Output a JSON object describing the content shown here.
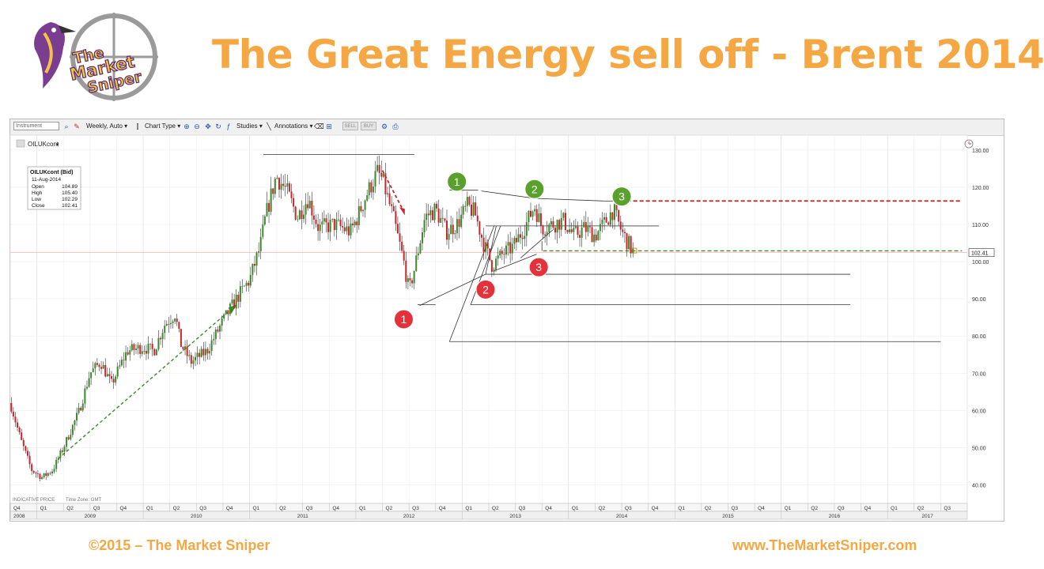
{
  "slide": {
    "title": "The Great Energy sell off - Brent 2014",
    "footer_left": "©2015 – The Market Sniper",
    "footer_right": "www.TheMarketSniper.com",
    "logo_text": [
      "The",
      "Market",
      "Sniper"
    ]
  },
  "toolbar": {
    "instrument_placeholder": "Instrument",
    "interval": "Weekly, Auto",
    "chart_type": "Chart Type",
    "studies": "Studies",
    "annotations": "Annotations",
    "sell": "SELL",
    "buy": "BUY"
  },
  "chart_data": {
    "type": "candlestick",
    "symbol": "OILUKcont",
    "tooltip": {
      "header": "OILUKcont (Bid)",
      "date": "11-Aug-2014",
      "rows": [
        {
          "label": "Open",
          "value": "104.89"
        },
        {
          "label": "High",
          "value": "105.40"
        },
        {
          "label": "Low",
          "value": "102.29"
        },
        {
          "label": "Close",
          "value": "102.41"
        }
      ]
    },
    "last_price": "102.41",
    "ylim": [
      35,
      134
    ],
    "y_ticks": [
      130,
      120,
      110,
      100,
      90,
      80,
      70,
      60,
      50,
      40
    ],
    "y_tick_labels": [
      "130.00",
      "120.00",
      "110.00",
      "100.00",
      "90.00",
      "80.00",
      "70.00",
      "60.00",
      "50.00",
      "40.00"
    ],
    "xlim": [
      2008.75,
      2017.75
    ],
    "quarters": [
      "Q4",
      "Q1",
      "Q2",
      "Q3",
      "Q4",
      "Q1",
      "Q2",
      "Q3",
      "Q4",
      "Q1",
      "Q2",
      "Q3",
      "Q4",
      "Q1",
      "Q2",
      "Q3",
      "Q4",
      "Q1",
      "Q2",
      "Q3",
      "Q4",
      "Q1",
      "Q2",
      "Q3",
      "Q4",
      "Q1",
      "Q2",
      "Q3",
      "Q4",
      "Q1",
      "Q2",
      "Q3",
      "Q4",
      "Q1",
      "Q2",
      "Q3"
    ],
    "years": [
      "2008",
      "2009",
      "2010",
      "2011",
      "2012",
      "2013",
      "2014",
      "2015",
      "2016",
      "2017"
    ],
    "footnote_left": "INDICATIVE PRICE",
    "footnote_right": "Time Zone: GMT",
    "price_path": [
      [
        2008.75,
        62
      ],
      [
        2008.85,
        52
      ],
      [
        2008.95,
        44
      ],
      [
        2009.05,
        42
      ],
      [
        2009.15,
        44
      ],
      [
        2009.25,
        50
      ],
      [
        2009.4,
        60
      ],
      [
        2009.5,
        70
      ],
      [
        2009.6,
        73
      ],
      [
        2009.7,
        67
      ],
      [
        2009.85,
        76
      ],
      [
        2010.0,
        77
      ],
      [
        2010.1,
        76
      ],
      [
        2010.2,
        83
      ],
      [
        2010.3,
        86
      ],
      [
        2010.35,
        78
      ],
      [
        2010.45,
        73
      ],
      [
        2010.6,
        76
      ],
      [
        2010.75,
        84
      ],
      [
        2010.9,
        91
      ],
      [
        2011.0,
        95
      ],
      [
        2011.1,
        104
      ],
      [
        2011.15,
        112
      ],
      [
        2011.25,
        123
      ],
      [
        2011.35,
        119
      ],
      [
        2011.45,
        112
      ],
      [
        2011.55,
        117
      ],
      [
        2011.65,
        109
      ],
      [
        2011.8,
        110
      ],
      [
        2011.95,
        108
      ],
      [
        2012.0,
        111
      ],
      [
        2012.1,
        118
      ],
      [
        2012.2,
        124
      ],
      [
        2012.25,
        122
      ],
      [
        2012.35,
        112
      ],
      [
        2012.45,
        100
      ],
      [
        2012.5,
        92
      ],
      [
        2012.55,
        98
      ],
      [
        2012.65,
        112
      ],
      [
        2012.75,
        114
      ],
      [
        2012.85,
        108
      ],
      [
        2012.95,
        110
      ],
      [
        2013.05,
        115
      ],
      [
        2013.12,
        113
      ],
      [
        2013.2,
        105
      ],
      [
        2013.28,
        99
      ],
      [
        2013.38,
        102
      ],
      [
        2013.48,
        104
      ],
      [
        2013.6,
        110
      ],
      [
        2013.68,
        115
      ],
      [
        2013.75,
        109
      ],
      [
        2013.85,
        110
      ],
      [
        2013.95,
        111
      ],
      [
        2014.05,
        107
      ],
      [
        2014.15,
        109
      ],
      [
        2014.25,
        107
      ],
      [
        2014.33,
        110
      ],
      [
        2014.42,
        114
      ],
      [
        2014.5,
        108
      ],
      [
        2014.58,
        104
      ],
      [
        2014.61,
        102.4
      ]
    ],
    "annotation_markers": [
      {
        "label": "1",
        "color": "#5aa02c",
        "x": 2012.95,
        "y": 121.5
      },
      {
        "label": "2",
        "color": "#5aa02c",
        "x": 2013.68,
        "y": 119.5
      },
      {
        "label": "3",
        "color": "#5aa02c",
        "x": 2014.5,
        "y": 117.5
      },
      {
        "label": "1",
        "color": "#e5323a",
        "x": 2012.45,
        "y": 84.5
      },
      {
        "label": "2",
        "color": "#e5323a",
        "x": 2013.22,
        "y": 92.5
      },
      {
        "label": "3",
        "color": "#e5323a",
        "x": 2013.72,
        "y": 98.5
      }
    ]
  }
}
